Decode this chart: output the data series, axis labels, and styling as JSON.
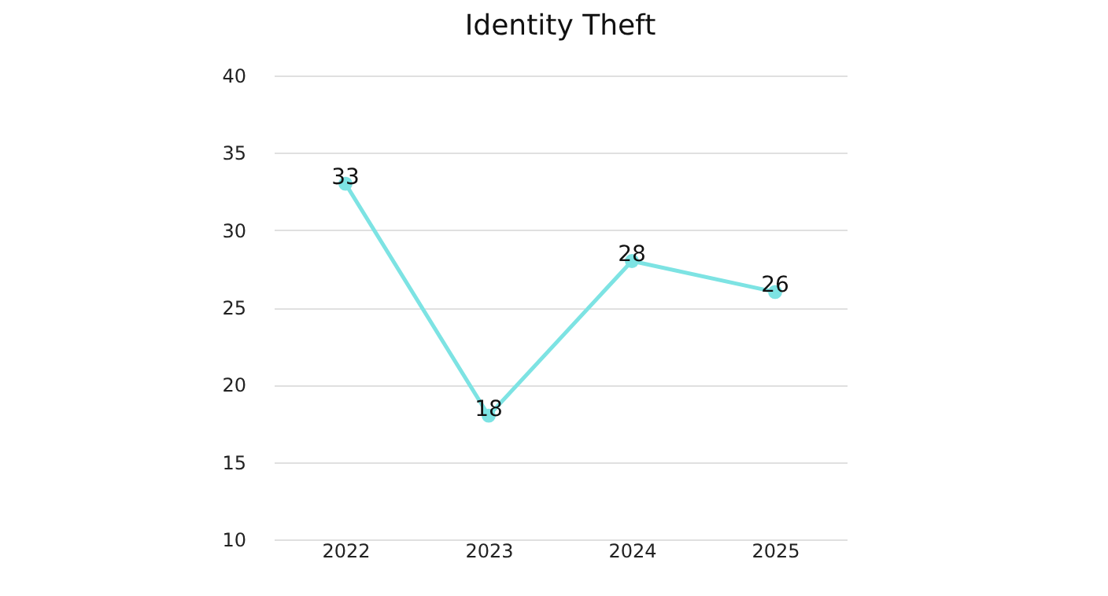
{
  "chart_data": {
    "type": "line",
    "title": "Identity Theft",
    "categories": [
      "2022",
      "2023",
      "2024",
      "2025"
    ],
    "series": [
      {
        "color": "#7de3e3",
        "values": [
          33,
          18,
          28,
          26
        ]
      }
    ],
    "ylim": [
      10,
      40
    ],
    "yticks": [
      10,
      15,
      20,
      25,
      30,
      35,
      40
    ],
    "grid": "y",
    "marker": "circle",
    "line_style": "solid",
    "data_labels": true
  }
}
